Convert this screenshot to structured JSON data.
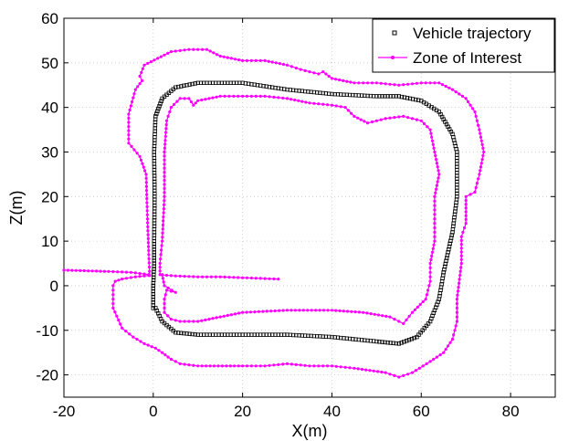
{
  "chart_data": {
    "type": "scatter",
    "xlabel": "X(m)",
    "ylabel": "Z(m)",
    "xlim": [
      -20,
      90
    ],
    "ylim": [
      -25,
      60
    ],
    "xticks": [
      -20,
      0,
      20,
      40,
      60,
      80
    ],
    "yticks": [
      -20,
      -10,
      0,
      10,
      20,
      30,
      40,
      50,
      60
    ],
    "grid": true,
    "legend_position": "top-right",
    "series": [
      {
        "name": "Vehicle trajectory",
        "style": "square-markers",
        "color": "#000000",
        "points": [
          [
            0,
            -5
          ],
          [
            0,
            0
          ],
          [
            0.2,
            5
          ],
          [
            0.2,
            10
          ],
          [
            0.3,
            20
          ],
          [
            0.2,
            30
          ],
          [
            0.5,
            38
          ],
          [
            2,
            42
          ],
          [
            5,
            44.5
          ],
          [
            10,
            45.5
          ],
          [
            20,
            45.5
          ],
          [
            30,
            44
          ],
          [
            40,
            43
          ],
          [
            50,
            42.5
          ],
          [
            55,
            42.5
          ],
          [
            60,
            41.5
          ],
          [
            64,
            39
          ],
          [
            67,
            34
          ],
          [
            68,
            30
          ],
          [
            68,
            20
          ],
          [
            67,
            12
          ],
          [
            65,
            3
          ],
          [
            64,
            -3
          ],
          [
            62,
            -8
          ],
          [
            59,
            -11.5
          ],
          [
            55,
            -13
          ],
          [
            50,
            -12.5
          ],
          [
            40,
            -11.5
          ],
          [
            30,
            -11
          ],
          [
            20,
            -11
          ],
          [
            10,
            -11
          ],
          [
            5,
            -10.5
          ],
          [
            2,
            -8
          ],
          [
            0.5,
            -5
          ]
        ]
      },
      {
        "name": "Zone of Interest",
        "style": "dot-line",
        "color": "#ff00ff",
        "outer": [
          [
            -0.8,
            2.3
          ],
          [
            -1,
            7
          ],
          [
            -1.3,
            15
          ],
          [
            -1.6,
            25
          ],
          [
            -3,
            29
          ],
          [
            -5.5,
            32
          ],
          [
            -5.5,
            38.5
          ],
          [
            -4,
            44
          ],
          [
            -2.5,
            46
          ],
          [
            -3,
            47
          ],
          [
            -2,
            49.5
          ],
          [
            1,
            51
          ],
          [
            4,
            52.5
          ],
          [
            8,
            53
          ],
          [
            12,
            53
          ],
          [
            15,
            51.5
          ],
          [
            20,
            50.5
          ],
          [
            25,
            50.5
          ],
          [
            30,
            49.5
          ],
          [
            33,
            48.5
          ],
          [
            37,
            47.5
          ],
          [
            38,
            48
          ],
          [
            40,
            46.5
          ],
          [
            45,
            45.5
          ],
          [
            50,
            45.5
          ],
          [
            55,
            45
          ],
          [
            60,
            45.5
          ],
          [
            64,
            45.5
          ],
          [
            67,
            44
          ],
          [
            70,
            42
          ],
          [
            72,
            39
          ],
          [
            73,
            35
          ],
          [
            74,
            30
          ],
          [
            73,
            25
          ],
          [
            72,
            21
          ],
          [
            70,
            20
          ],
          [
            70,
            14
          ],
          [
            69,
            11
          ],
          [
            69,
            5
          ],
          [
            68,
            -3
          ],
          [
            68,
            -8
          ],
          [
            67,
            -12
          ],
          [
            65,
            -15
          ],
          [
            62,
            -17
          ],
          [
            58,
            -19.5
          ],
          [
            55,
            -20.5
          ],
          [
            52,
            -19.5
          ],
          [
            45,
            -18.5
          ],
          [
            40,
            -18
          ],
          [
            35,
            -18
          ],
          [
            30,
            -17.5
          ],
          [
            25,
            -18
          ],
          [
            20,
            -18
          ],
          [
            10,
            -18
          ],
          [
            6,
            -17.5
          ],
          [
            4,
            -16.5
          ],
          [
            2,
            -15
          ],
          [
            0.5,
            -14
          ],
          [
            -2,
            -13
          ],
          [
            -4.5,
            -11.5
          ],
          [
            -7,
            -9.5
          ],
          [
            -9,
            -5
          ],
          [
            -9,
            0
          ],
          [
            -8.5,
            1
          ],
          [
            -7,
            1.5
          ],
          [
            -4,
            2
          ],
          [
            -1,
            2.3
          ]
        ],
        "inner": [
          [
            2,
            2.5
          ],
          [
            2.5,
            0
          ],
          [
            5,
            -1.5
          ],
          [
            3,
            -1
          ],
          [
            2.5,
            -3
          ],
          [
            2.5,
            -6
          ],
          [
            4,
            -7.5
          ],
          [
            6,
            -8
          ],
          [
            10,
            -8
          ],
          [
            15,
            -7
          ],
          [
            20,
            -6
          ],
          [
            30,
            -5.5
          ],
          [
            40,
            -5.5
          ],
          [
            47,
            -6
          ],
          [
            53,
            -7
          ],
          [
            55,
            -8
          ],
          [
            56,
            -8.5
          ],
          [
            58,
            -6
          ],
          [
            61,
            -3
          ],
          [
            62,
            1
          ],
          [
            62,
            5
          ],
          [
            63,
            10
          ],
          [
            63,
            15
          ],
          [
            63,
            20
          ],
          [
            64,
            25
          ],
          [
            63,
            30
          ],
          [
            62,
            35
          ],
          [
            60,
            37
          ],
          [
            56,
            38
          ],
          [
            52,
            37.5
          ],
          [
            48,
            36.5
          ],
          [
            45,
            38
          ],
          [
            43,
            40
          ],
          [
            40,
            40.5
          ],
          [
            35,
            41
          ],
          [
            30,
            42
          ],
          [
            25,
            42.5
          ],
          [
            20,
            42.5
          ],
          [
            15,
            42.5
          ],
          [
            10,
            41.5
          ],
          [
            9,
            40.5
          ],
          [
            8,
            42
          ],
          [
            6,
            42
          ],
          [
            4,
            40
          ],
          [
            3,
            37
          ],
          [
            2.5,
            30
          ],
          [
            2.5,
            20
          ],
          [
            2,
            10
          ],
          [
            1.5,
            5
          ],
          [
            1.5,
            2.5
          ]
        ],
        "spur_left": [
          [
            -20,
            3.5
          ],
          [
            -10,
            3.2
          ],
          [
            -5,
            3
          ],
          [
            -1,
            2.5
          ]
        ],
        "spur_right": [
          [
            2,
            2.4
          ],
          [
            5,
            2.2
          ],
          [
            10,
            2
          ],
          [
            15,
            2
          ],
          [
            20,
            1.8
          ],
          [
            25,
            1.6
          ],
          [
            28,
            1.5
          ]
        ]
      }
    ]
  }
}
